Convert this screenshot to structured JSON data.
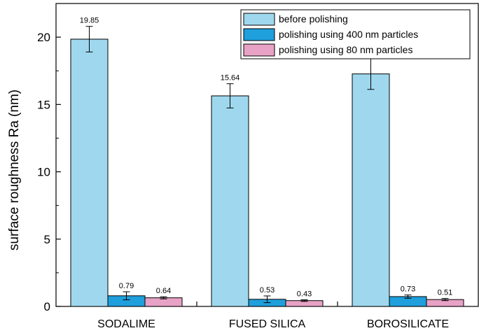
{
  "chart_data": {
    "type": "bar",
    "title": "",
    "xlabel": "",
    "ylabel": "surface roughness Ra (nm)",
    "ylim": [
      0,
      22.5
    ],
    "yticks": [
      0,
      5,
      10,
      15,
      20
    ],
    "yticks_labels": [
      "0",
      "5",
      "10",
      "15",
      "20"
    ],
    "grid": false,
    "legend_position": "top-right",
    "categories": [
      "SODALIME",
      "FUSED SILICA",
      "BOROSILICATE"
    ],
    "series": [
      {
        "name": "before polishing",
        "color": "#9fd8ee",
        "values": [
          19.85,
          15.64,
          17.27
        ],
        "labels": [
          "19.85",
          "15.64",
          "17.27"
        ],
        "errors": [
          0.95,
          0.9,
          1.15
        ]
      },
      {
        "name": "polishing using 400 nm particles",
        "color": "#1f9fdc",
        "values": [
          0.79,
          0.53,
          0.73
        ],
        "labels": [
          "0.79",
          "0.53",
          "0.73"
        ],
        "errors": [
          0.3,
          0.25,
          0.12
        ]
      },
      {
        "name": "polishing using 80 nm particles",
        "color": "#e8a2c6",
        "values": [
          0.64,
          0.43,
          0.51
        ],
        "labels": [
          "0.64",
          "0.43",
          "0.51"
        ],
        "errors": [
          0.08,
          0.06,
          0.08
        ]
      }
    ]
  }
}
